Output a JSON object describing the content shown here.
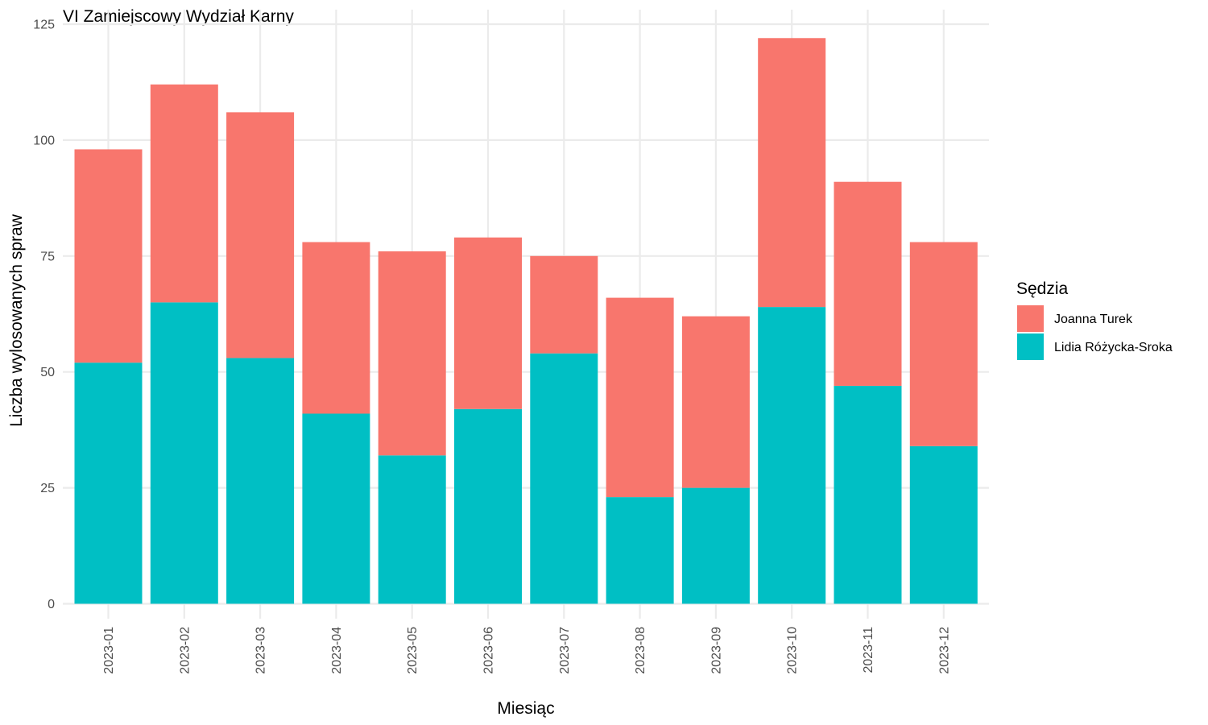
{
  "chart_data": {
    "type": "bar",
    "stacked": true,
    "title": "VI Zamiejscowy Wydział Karny",
    "xlabel": "Miesiąc",
    "ylabel": "Liczba wylosowanych spraw",
    "ylim": [
      0,
      125
    ],
    "yticks": [
      0,
      25,
      50,
      75,
      100,
      125
    ],
    "ytick_labels": [
      "0",
      "25",
      "50",
      "75",
      "100",
      "125"
    ],
    "grid": true,
    "legend_position": "right",
    "legend_title": "Sędzia",
    "categories": [
      "2023-01",
      "2023-02",
      "2023-03",
      "2023-04",
      "2023-05",
      "2023-06",
      "2023-07",
      "2023-08",
      "2023-09",
      "2023-10",
      "2023-11",
      "2023-12"
    ],
    "series": [
      {
        "name": "Lidia Różycka-Sroka",
        "color": "#00BFC4",
        "values": [
          52,
          65,
          53,
          41,
          32,
          42,
          54,
          23,
          25,
          64,
          47,
          34
        ]
      },
      {
        "name": "Joanna Turek",
        "color": "#F8766D",
        "values": [
          46,
          47,
          53,
          37,
          44,
          37,
          21,
          43,
          37,
          58,
          44,
          44
        ]
      }
    ],
    "legend_order": [
      "Joanna Turek",
      "Lidia Różycka-Sroka"
    ]
  }
}
